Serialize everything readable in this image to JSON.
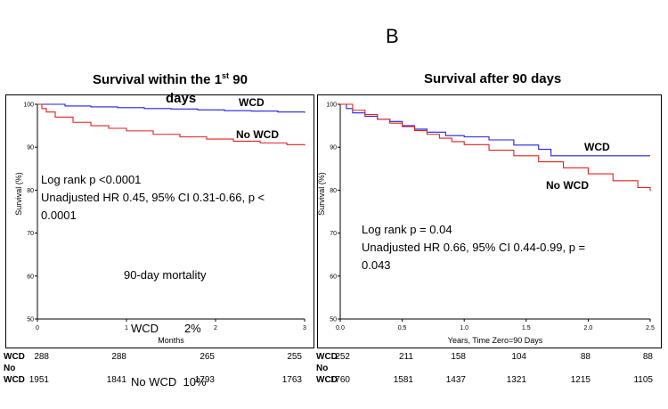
{
  "panel_letter": "B",
  "chart_data": [
    {
      "type": "line",
      "title_main": "Survival within the 1",
      "title_sup": "st",
      "title_end": " 90",
      "title_line2": "days",
      "xlabel": "Months",
      "ylabel": "Survival (%)",
      "xlim": [
        0,
        3
      ],
      "ylim": [
        50,
        100
      ],
      "x_ticks": [
        "0",
        "1",
        "2",
        "3"
      ],
      "y_ticks": [
        "100",
        "90",
        "80",
        "70",
        "60",
        "50"
      ],
      "series": [
        {
          "name": "WCD",
          "color": "#2020e0",
          "x": [
            0,
            0.3,
            0.31,
            0.6,
            0.9,
            1.2,
            1.5,
            1.8,
            2.1,
            2.4,
            2.7,
            3.0
          ],
          "y": [
            100,
            100,
            99.6,
            99.4,
            99.2,
            99.0,
            98.9,
            98.7,
            98.5,
            98.4,
            98.2,
            98.0
          ]
        },
        {
          "name": "No WCD",
          "color": "#e02020",
          "x": [
            0,
            0.05,
            0.1,
            0.2,
            0.4,
            0.6,
            0.8,
            1.0,
            1.3,
            1.6,
            1.9,
            2.2,
            2.5,
            2.8,
            3.0
          ],
          "y": [
            100,
            99.0,
            98.2,
            97.0,
            95.8,
            95.0,
            94.4,
            93.8,
            93.0,
            92.4,
            91.9,
            91.4,
            91.0,
            90.6,
            90.4
          ]
        }
      ],
      "annotations": {
        "logrank": "Log rank p <0.0001",
        "hr_line1": "Unadjusted HR 0.45, 95% CI 0.31-0.66, p <",
        "hr_line2": "0.0001",
        "mortality_title": "90-day mortality",
        "mortality_wcd": "WCD        2%",
        "mortality_nowcd": "No WCD  10%"
      },
      "risk_table": {
        "label_wcd": "WCD",
        "label_no": "No",
        "label_wcd2": "WCD",
        "wcd": [
          "288",
          "288",
          "265",
          "255"
        ],
        "nowcd": [
          "1951",
          "1841",
          "1793",
          "1763"
        ]
      }
    },
    {
      "type": "line",
      "title": "Survival after 90 days",
      "xlabel": "Years, Time Zero=90 Days",
      "ylabel": "Survival (%)",
      "xlim": [
        0,
        2.5
      ],
      "ylim": [
        50,
        100
      ],
      "x_ticks": [
        "0.0",
        "0.5",
        "1.0",
        "1.5",
        "2.0",
        "2.5"
      ],
      "y_ticks": [
        "100",
        "90",
        "80",
        "70",
        "60",
        "50"
      ],
      "series": [
        {
          "name": "WCD",
          "color": "#2020e0",
          "x": [
            0,
            0.05,
            0.1,
            0.2,
            0.3,
            0.4,
            0.5,
            0.6,
            0.7,
            0.85,
            1.0,
            1.2,
            1.4,
            1.6,
            1.7,
            2.0,
            2.5
          ],
          "y": [
            100,
            99.0,
            98.0,
            97.2,
            96.5,
            96.0,
            95.0,
            94.2,
            93.5,
            92.7,
            92.4,
            91.7,
            90.5,
            89.5,
            88.0,
            88.0,
            88.0
          ]
        },
        {
          "name": "No WCD",
          "color": "#e02020",
          "x": [
            0,
            0.1,
            0.2,
            0.3,
            0.4,
            0.5,
            0.6,
            0.7,
            0.8,
            0.9,
            1.0,
            1.2,
            1.4,
            1.6,
            1.8,
            2.0,
            2.2,
            2.4,
            2.5
          ],
          "y": [
            100,
            98.6,
            97.6,
            96.5,
            95.6,
            94.8,
            93.9,
            93.0,
            92.1,
            91.3,
            90.6,
            89.3,
            88.0,
            86.6,
            85.2,
            83.8,
            82.2,
            80.6,
            79.8
          ]
        }
      ],
      "annotations": {
        "logrank": "Log rank p = 0.04",
        "hr_line1": "Unadjusted HR 0.66, 95% CI 0.44-0.99, p =",
        "hr_line2": "0.043"
      },
      "risk_table": {
        "label_wcd": "WCD",
        "label_no": "No",
        "label_wcd2": "WCD",
        "wcd": [
          "252",
          "211",
          "158",
          "104",
          "88",
          "88"
        ],
        "nowcd": [
          "1760",
          "1581",
          "1437",
          "1321",
          "1215",
          "1105"
        ]
      }
    }
  ]
}
